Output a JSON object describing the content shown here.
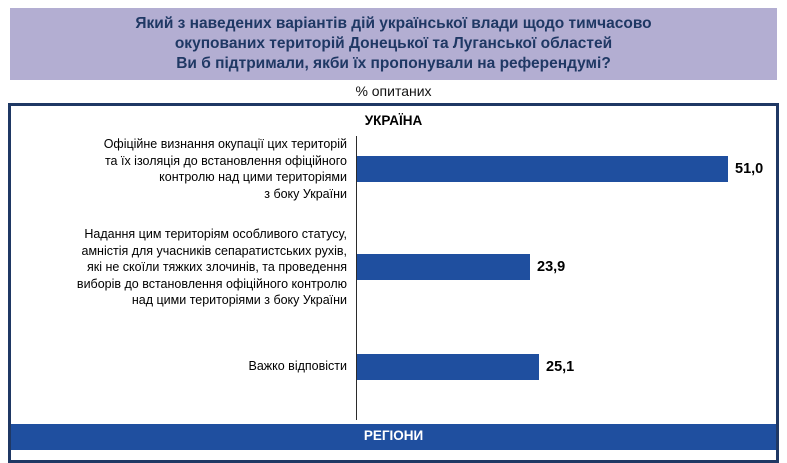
{
  "title": {
    "lines": [
      "Який з наведених варіантів дій української влади щодо тимчасово",
      "окупованих територій Донецької та Луганської областей",
      "Ви б підтримали, якби їх пропонували на референдумі?"
    ],
    "subtitle": "% опитаних"
  },
  "colors": {
    "title_background": "#b3aed2",
    "title_text": "#1f3864",
    "panel_border": "#1f3864",
    "bar": "#1f4f9f",
    "footer_band": "#1f4f9f"
  },
  "chart_data": {
    "type": "bar",
    "orientation": "horizontal",
    "title": "Який з наведених варіантів дій української влади щодо тимчасово окупованих територій Донецької та Луганської областей Ви б підтримали, якби їх пропонували на референдумі?",
    "subtitle": "% опитаних",
    "group_header": "УКРАЇНА",
    "categories": [
      "Офіційне визнання окупації цих територій\nта їх ізоляція до встановлення офіційного\nконтролю над цими територіями\nз боку України",
      "Надання цим територіям особливого статусу,\nамністія для учасників сепаратистських рухів,\nякі не скоїли тяжких злочинів, та проведення\nвиборів до встановлення офіційного контролю\nнад цими територіями з боку України",
      "Важко відповісти"
    ],
    "values": [
      51.0,
      23.9,
      25.1
    ],
    "value_labels": [
      "51,0",
      "23,9",
      "25,1"
    ],
    "xlim": [
      0,
      55
    ],
    "grid": false,
    "legend": false,
    "next_section_label": "РЕГІОНИ"
  }
}
